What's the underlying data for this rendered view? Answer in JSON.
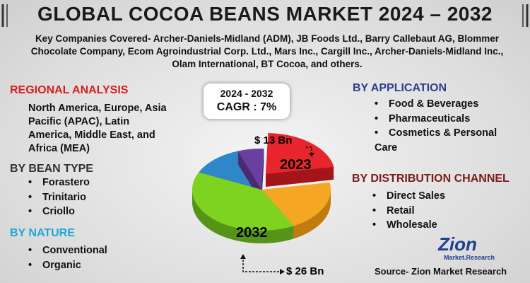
{
  "header": {
    "title": "GLOBAL COCOA BEANS MARKET 2024 – 2032",
    "companies": "Key Companies Covered- Archer-Daniels-Midland (ADM), JB Foods Ltd., Barry Callebaut AG, Blommer Chocolate Company, Ecom Agroindustrial Corp. Ltd., Mars Inc., Cargill Inc., Archer-Daniels-Midland Inc., Olam International, BT Cocoa, and others."
  },
  "regional": {
    "title": "REGIONAL ANALYSIS",
    "text": "North America, Europe, Asia Pacific (APAC), Latin America, Middle East, and Africa (MEA)"
  },
  "bean_type": {
    "title": "BY BEAN TYPE",
    "items": [
      "Forastero",
      "Trinitario",
      "Criollo"
    ]
  },
  "nature": {
    "title": "BY NATURE",
    "items": [
      "Conventional",
      "Organic"
    ]
  },
  "application": {
    "title": "BY APPLICATION",
    "items": [
      "Food & Beverages",
      "Pharmaceuticals",
      "Cosmetics & Personal Care"
    ]
  },
  "distribution": {
    "title": "BY DISTRIBUTION CHANNEL",
    "items": [
      "Direct Sales",
      "Retail",
      "Wholesale"
    ]
  },
  "cagr": {
    "period": "2024 - 2032",
    "label": "CAGR :  7%"
  },
  "pie": {
    "year_start": "2023",
    "year_end": "2032",
    "value_start": "$ 13 Bn",
    "value_end": "$ 26 Bn"
  },
  "logo": {
    "name": "Zion",
    "sub": "Market.Research"
  },
  "source": "Source- Zion Market Research"
}
